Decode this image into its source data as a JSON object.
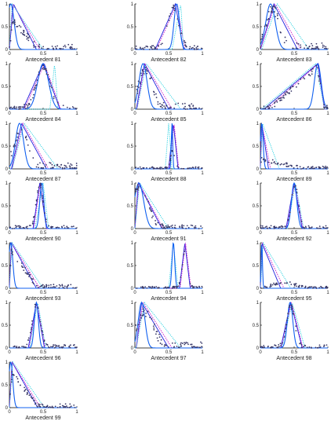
{
  "chart_data": [
    {
      "type": "line",
      "title": "Antecedent 81",
      "xticks": [
        "0",
        "0.5",
        "1"
      ],
      "yticks": [
        "0",
        "0.5",
        "1"
      ],
      "xlim": [
        0,
        1
      ],
      "ylim": [
        0,
        1
      ],
      "mf": [
        {
          "s": "tri",
          "p": [
            0,
            0.06,
            0.4
          ]
        },
        {
          "s": "tri",
          "p": [
            0,
            0.05,
            0.45
          ]
        },
        {
          "s": "tri",
          "p": [
            0,
            0.04,
            0.5
          ]
        },
        {
          "s": "g",
          "p": [
            0.02,
            0.05
          ]
        }
      ],
      "scatter": [
        {
          "s": "tri",
          "p": [
            0,
            0.05,
            0.42
          ],
          "n": 0.08,
          "amp": 0.6
        }
      ]
    },
    {
      "type": "line",
      "title": "Antecedent 82",
      "xticks": [
        "0",
        "0.5",
        "1"
      ],
      "yticks": [
        "0",
        "0.5",
        "1"
      ],
      "xlim": [
        0,
        1
      ],
      "ylim": [
        0,
        1
      ],
      "mf": [
        {
          "s": "tri",
          "p": [
            0.3,
            0.6,
            0.72
          ]
        },
        {
          "s": "tri",
          "p": [
            0.32,
            0.62,
            0.74
          ]
        },
        {
          "s": "tri",
          "p": [
            0.55,
            0.68,
            0.72
          ]
        },
        {
          "s": "g",
          "p": [
            0.62,
            0.04
          ]
        }
      ],
      "scatter": [
        {
          "s": "g",
          "p": [
            0.57,
            0.08
          ],
          "n": 0.06,
          "amp": 0.9
        }
      ]
    },
    {
      "type": "line",
      "title": "Antecedent 83",
      "xticks": [
        "0",
        "0.5",
        "1"
      ],
      "yticks": [
        "0",
        "0.5",
        "1"
      ],
      "xlim": [
        0,
        1
      ],
      "ylim": [
        0,
        1
      ],
      "mf": [
        {
          "s": "tri",
          "p": [
            0,
            0.2,
            0.55
          ]
        },
        {
          "s": "tri",
          "p": [
            0,
            0.22,
            0.6
          ]
        },
        {
          "s": "tri",
          "p": [
            0.02,
            0.25,
            0.72
          ]
        },
        {
          "s": "g",
          "p": [
            0.15,
            0.07
          ]
        }
      ],
      "scatter": [
        {
          "s": "g",
          "p": [
            0.18,
            0.1
          ],
          "n": 0.1,
          "amp": 0.85
        }
      ]
    },
    {
      "type": "line",
      "title": "Antecedent 84",
      "xticks": [
        "0",
        "0.5",
        "1"
      ],
      "yticks": [
        "0",
        "0.5",
        "1"
      ],
      "xlim": [
        0,
        1
      ],
      "ylim": [
        0,
        1
      ],
      "mf": [
        {
          "s": "tri",
          "p": [
            0.2,
            0.5,
            0.75
          ]
        },
        {
          "s": "tri",
          "p": [
            0.22,
            0.52,
            0.76
          ]
        },
        {
          "s": "tri",
          "p": [
            0.6,
            0.67,
            0.72
          ]
        },
        {
          "s": "g",
          "p": [
            0.5,
            0.08
          ]
        }
      ],
      "scatter": [
        {
          "s": "g",
          "p": [
            0.5,
            0.1
          ],
          "n": 0.06,
          "amp": 0.9
        }
      ]
    },
    {
      "type": "line",
      "title": "Antecedent 85",
      "xticks": [
        "0",
        "0.5",
        "1"
      ],
      "yticks": [
        "0",
        "0.5",
        "1"
      ],
      "xlim": [
        0,
        1
      ],
      "ylim": [
        0,
        1
      ],
      "mf": [
        {
          "s": "tri",
          "p": [
            0.02,
            0.14,
            0.5
          ]
        },
        {
          "s": "tri",
          "p": [
            0.03,
            0.15,
            0.55
          ]
        },
        {
          "s": "tri",
          "p": [
            0.03,
            0.17,
            0.68
          ]
        },
        {
          "s": "g",
          "p": [
            0.12,
            0.06
          ]
        }
      ],
      "scatter": [
        {
          "s": "g",
          "p": [
            0.16,
            0.1
          ],
          "n": 0.1,
          "amp": 0.85
        }
      ]
    },
    {
      "type": "line",
      "title": "Antecedent 86",
      "xticks": [
        "0",
        "0.5",
        "1"
      ],
      "yticks": [
        "0",
        "0.5",
        "1"
      ],
      "xlim": [
        0,
        1
      ],
      "ylim": [
        0,
        1
      ],
      "mf": [
        {
          "s": "tri",
          "p": [
            0.05,
            0.85,
            0.95
          ]
        },
        {
          "s": "tri",
          "p": [
            0.1,
            0.86,
            0.95
          ]
        },
        {
          "s": "tri",
          "p": [
            0.02,
            0.82,
            0.95
          ]
        },
        {
          "s": "g",
          "p": [
            0.85,
            0.05
          ]
        }
      ],
      "scatter": [
        {
          "s": "tri",
          "p": [
            0.15,
            0.84,
            0.95
          ],
          "n": 0.06,
          "amp": 0.9
        }
      ]
    },
    {
      "type": "line",
      "title": "Antecedent 87",
      "xticks": [
        "0",
        "0.5",
        "1"
      ],
      "yticks": [
        "0",
        "0.5",
        "1"
      ],
      "xlim": [
        0,
        1
      ],
      "ylim": [
        0,
        1
      ],
      "mf": [
        {
          "s": "tri",
          "p": [
            0.03,
            0.18,
            0.55
          ]
        },
        {
          "s": "tri",
          "p": [
            0.04,
            0.2,
            0.58
          ]
        },
        {
          "s": "tri",
          "p": [
            0.04,
            0.22,
            0.72
          ]
        },
        {
          "s": "g",
          "p": [
            0.15,
            0.06
          ]
        }
      ],
      "scatter": [
        {
          "s": "g",
          "p": [
            0.18,
            0.1
          ],
          "n": 0.1,
          "amp": 0.85
        }
      ]
    },
    {
      "type": "line",
      "title": "Antecedent 88",
      "xticks": [
        "0",
        "0.5",
        "1"
      ],
      "yticks": [
        "0",
        "0.5",
        "1"
      ],
      "xlim": [
        0,
        1
      ],
      "ylim": [
        0,
        1
      ],
      "mf": [
        {
          "s": "tri",
          "p": [
            0.5,
            0.57,
            0.64
          ]
        },
        {
          "s": "tri",
          "p": [
            0.51,
            0.58,
            0.65
          ]
        },
        {
          "s": "tri",
          "p": [
            0.45,
            0.5,
            0.55
          ]
        },
        {
          "s": "g",
          "p": [
            0.55,
            0.01
          ]
        }
      ],
      "scatter": [
        {
          "s": "g",
          "p": [
            0.56,
            0.03
          ],
          "n": 0.03,
          "amp": 0.4
        }
      ]
    },
    {
      "type": "line",
      "title": "Antecedent 89",
      "xticks": [
        "0",
        "0.5",
        "1"
      ],
      "yticks": [
        "0",
        "0.5",
        "1"
      ],
      "xlim": [
        0,
        1
      ],
      "ylim": [
        0,
        1
      ],
      "mf": [
        {
          "s": "tri",
          "p": [
            0,
            0.02,
            0.12
          ]
        },
        {
          "s": "tri",
          "p": [
            0,
            0.02,
            0.15
          ]
        },
        {
          "s": "tri",
          "p": [
            0,
            0.03,
            0.28
          ]
        },
        {
          "s": "g",
          "p": [
            0.02,
            0.02
          ]
        }
      ],
      "scatter": [
        {
          "s": "tri",
          "p": [
            0,
            0.02,
            0.6
          ],
          "n": 0.04,
          "amp": 0.2
        }
      ]
    },
    {
      "type": "line",
      "title": "Antecedent 90",
      "xticks": [
        "0",
        "0.5",
        "1"
      ],
      "yticks": [
        "0",
        "0.5",
        "1"
      ],
      "xlim": [
        0,
        1
      ],
      "ylim": [
        0,
        1
      ],
      "mf": [
        {
          "s": "tri",
          "p": [
            0.35,
            0.45,
            0.55
          ]
        },
        {
          "s": "tri",
          "p": [
            0.36,
            0.46,
            0.56
          ]
        },
        {
          "s": "tri",
          "p": [
            0.38,
            0.5,
            0.58
          ]
        },
        {
          "s": "g",
          "p": [
            0.48,
            0.03
          ]
        }
      ],
      "scatter": [
        {
          "s": "g",
          "p": [
            0.45,
            0.05
          ],
          "n": 0.05,
          "amp": 0.95
        }
      ]
    },
    {
      "type": "line",
      "title": "Antecedent 91",
      "xticks": [
        "0",
        "0.5",
        "1"
      ],
      "yticks": [
        "0",
        "0.5",
        "1"
      ],
      "xlim": [
        0,
        1
      ],
      "ylim": [
        0,
        1
      ],
      "mf": [
        {
          "s": "tri",
          "p": [
            0,
            0.05,
            0.4
          ]
        },
        {
          "s": "tri",
          "p": [
            0,
            0.06,
            0.42
          ]
        },
        {
          "s": "tri",
          "p": [
            0,
            0.07,
            0.5
          ]
        },
        {
          "s": "g",
          "p": [
            0.06,
            0.07
          ]
        }
      ],
      "scatter": [
        {
          "s": "g",
          "p": [
            0.07,
            0.12
          ],
          "n": 0.06,
          "amp": 0.9
        }
      ]
    },
    {
      "type": "line",
      "title": "Antecedent 92",
      "xticks": [
        "0",
        "0.5",
        "1"
      ],
      "yticks": [
        "0",
        "0.5",
        "1"
      ],
      "xlim": [
        0,
        1
      ],
      "ylim": [
        0,
        1
      ],
      "mf": [
        {
          "s": "tri",
          "p": [
            0.38,
            0.5,
            0.62
          ]
        },
        {
          "s": "tri",
          "p": [
            0.39,
            0.51,
            0.63
          ]
        },
        {
          "s": "tri",
          "p": [
            0.4,
            0.52,
            0.64
          ]
        },
        {
          "s": "g",
          "p": [
            0.5,
            0.04
          ]
        }
      ],
      "scatter": [
        {
          "s": "g",
          "p": [
            0.51,
            0.05
          ],
          "n": 0.05,
          "amp": 0.95
        }
      ]
    },
    {
      "type": "line",
      "title": "Antecedent 93",
      "xticks": [
        "0",
        "0.5",
        "1"
      ],
      "yticks": [
        "0",
        "0.5",
        "1"
      ],
      "xlim": [
        0,
        1
      ],
      "ylim": [
        0,
        1
      ],
      "mf": [
        {
          "s": "tri",
          "p": [
            0,
            0.03,
            0.4
          ]
        },
        {
          "s": "tri",
          "p": [
            0,
            0.03,
            0.45
          ]
        },
        {
          "s": "tri",
          "p": [
            0,
            0.04,
            0.5
          ]
        },
        {
          "s": "g",
          "p": [
            0.02,
            0.03
          ]
        }
      ],
      "scatter": [
        {
          "s": "tri",
          "p": [
            0,
            0.03,
            0.42
          ],
          "n": 0.06,
          "amp": 0.8
        }
      ]
    },
    {
      "type": "line",
      "title": "Antecedent 94",
      "xticks": [
        "0",
        "0.5",
        "1"
      ],
      "yticks": [
        "0",
        "0.5",
        "1"
      ],
      "xlim": [
        0,
        1
      ],
      "ylim": [
        0,
        1
      ],
      "mf": [
        {
          "s": "tri",
          "p": [
            0.66,
            0.74,
            0.82
          ]
        },
        {
          "s": "tri",
          "p": [
            0.67,
            0.75,
            0.83
          ]
        },
        {
          "s": "tri",
          "p": [
            0.5,
            0.57,
            0.64
          ]
        },
        {
          "s": "g",
          "p": [
            0.57,
            0.02
          ]
        }
      ],
      "scatter": [
        {
          "s": "g",
          "p": [
            0.74,
            0.04
          ],
          "n": 0.03,
          "amp": 0.8
        }
      ]
    },
    {
      "type": "line",
      "title": "Antecedent 95",
      "xticks": [
        "0",
        "0.5",
        "1"
      ],
      "yticks": [
        "0",
        "0.5",
        "1"
      ],
      "xlim": [
        0,
        1
      ],
      "ylim": [
        0,
        1
      ],
      "mf": [
        {
          "s": "tri",
          "p": [
            0,
            0.02,
            0.3
          ]
        },
        {
          "s": "tri",
          "p": [
            0,
            0.03,
            0.35
          ]
        },
        {
          "s": "tri",
          "p": [
            0,
            0.04,
            0.45
          ]
        },
        {
          "s": "g",
          "p": [
            0.02,
            0.01
          ]
        }
      ],
      "scatter": [
        {
          "s": "g",
          "p": [
            0.35,
            0.15
          ],
          "n": 0.03,
          "amp": 0.12
        }
      ]
    },
    {
      "type": "line",
      "title": "Antecedent 96",
      "xticks": [
        "0",
        "0.5",
        "1"
      ],
      "yticks": [
        "0",
        "0.5",
        "1"
      ],
      "xlim": [
        0,
        1
      ],
      "ylim": [
        0,
        1
      ],
      "mf": [
        {
          "s": "tri",
          "p": [
            0.28,
            0.4,
            0.52
          ]
        },
        {
          "s": "tri",
          "p": [
            0.29,
            0.41,
            0.53
          ]
        },
        {
          "s": "tri",
          "p": [
            0.3,
            0.42,
            0.54
          ]
        },
        {
          "s": "g",
          "p": [
            0.4,
            0.03
          ]
        }
      ],
      "scatter": [
        {
          "s": "g",
          "p": [
            0.4,
            0.06
          ],
          "n": 0.05,
          "amp": 0.95
        }
      ]
    },
    {
      "type": "line",
      "title": "Antecedent 97",
      "xticks": [
        "0",
        "0.5",
        "1"
      ],
      "yticks": [
        "0",
        "0.5",
        "1"
      ],
      "xlim": [
        0,
        1
      ],
      "ylim": [
        0,
        1
      ],
      "mf": [
        {
          "s": "tri",
          "p": [
            0.02,
            0.1,
            0.5
          ]
        },
        {
          "s": "tri",
          "p": [
            0.02,
            0.12,
            0.55
          ]
        },
        {
          "s": "tri",
          "p": [
            0.02,
            0.14,
            0.68
          ]
        },
        {
          "s": "g",
          "p": [
            0.1,
            0.05
          ]
        }
      ],
      "scatter": [
        {
          "s": "g",
          "p": [
            0.15,
            0.12
          ],
          "n": 0.1,
          "amp": 0.75
        }
      ]
    },
    {
      "type": "line",
      "title": "Antecedent 98",
      "xticks": [
        "0",
        "0.5",
        "1"
      ],
      "yticks": [
        "0",
        "0.5",
        "1"
      ],
      "xlim": [
        0,
        1
      ],
      "ylim": [
        0,
        1
      ],
      "mf": [
        {
          "s": "tri",
          "p": [
            0.3,
            0.45,
            0.62
          ]
        },
        {
          "s": "tri",
          "p": [
            0.31,
            0.46,
            0.63
          ]
        },
        {
          "s": "tri",
          "p": [
            0.32,
            0.47,
            0.66
          ]
        },
        {
          "s": "g",
          "p": [
            0.44,
            0.04
          ]
        }
      ],
      "scatter": [
        {
          "s": "g",
          "p": [
            0.45,
            0.06
          ],
          "n": 0.05,
          "amp": 0.9
        }
      ]
    },
    {
      "type": "line",
      "title": "Antecedent 99",
      "xticks": [
        "0",
        "0.5",
        "1"
      ],
      "yticks": [
        "0",
        "0.5",
        "1"
      ],
      "xlim": [
        0,
        1
      ],
      "ylim": [
        0,
        1
      ],
      "mf": [
        {
          "s": "tri",
          "p": [
            0,
            0.04,
            0.42
          ]
        },
        {
          "s": "tri",
          "p": [
            0,
            0.04,
            0.46
          ]
        },
        {
          "s": "tri",
          "p": [
            0,
            0.05,
            0.52
          ]
        },
        {
          "s": "g",
          "p": [
            0.02,
            0.03
          ]
        }
      ],
      "scatter": [
        {
          "s": "tri",
          "p": [
            0,
            0.04,
            0.42
          ],
          "n": 0.06,
          "amp": 0.75
        }
      ]
    }
  ],
  "colors": {
    "curves": [
      "#1f1fdd",
      "#cc22cc",
      "#22cfe0",
      "#1060f0"
    ],
    "scatter": "#3a3a6a",
    "axis": "#000000",
    "text": "#222222"
  }
}
